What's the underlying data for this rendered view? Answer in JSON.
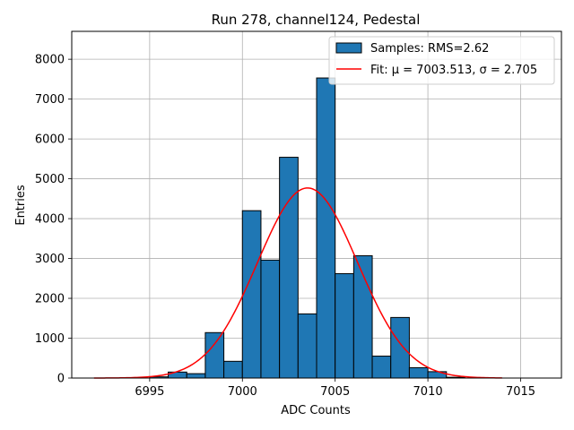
{
  "chart_data": {
    "type": "bar",
    "title": "Run 278, channel124, Pedestal",
    "xlabel": "ADC Counts",
    "ylabel": "Entries",
    "xlim": [
      6990.8,
      7017.2
    ],
    "ylim": [
      0,
      8700
    ],
    "xticks": [
      6995,
      7000,
      7005,
      7010,
      7015
    ],
    "yticks": [
      0,
      1000,
      2000,
      3000,
      4000,
      5000,
      6000,
      7000,
      8000
    ],
    "grid": true,
    "legend_position": "top-right",
    "bins": [
      {
        "left": 6995.0,
        "right": 6996.0,
        "value": 30
      },
      {
        "left": 6996.0,
        "right": 6997.0,
        "value": 150
      },
      {
        "left": 6997.0,
        "right": 6998.0,
        "value": 110
      },
      {
        "left": 6998.0,
        "right": 6999.0,
        "value": 1140
      },
      {
        "left": 6999.0,
        "right": 7000.0,
        "value": 420
      },
      {
        "left": 7000.0,
        "right": 7001.0,
        "value": 4200
      },
      {
        "left": 7001.0,
        "right": 7002.0,
        "value": 2960
      },
      {
        "left": 7002.0,
        "right": 7003.0,
        "value": 5540
      },
      {
        "left": 7003.0,
        "right": 7004.0,
        "value": 1610
      },
      {
        "left": 7004.0,
        "right": 7005.0,
        "value": 7530
      },
      {
        "left": 7005.0,
        "right": 7006.0,
        "value": 2620
      },
      {
        "left": 7006.0,
        "right": 7007.0,
        "value": 3070
      },
      {
        "left": 7007.0,
        "right": 7008.0,
        "value": 550
      },
      {
        "left": 7008.0,
        "right": 7009.0,
        "value": 1520
      },
      {
        "left": 7009.0,
        "right": 7010.0,
        "value": 260
      },
      {
        "left": 7010.0,
        "right": 7011.0,
        "value": 160
      },
      {
        "left": 7011.0,
        "right": 7012.0,
        "value": 20
      }
    ],
    "fit": {
      "mu": 7003.513,
      "sigma": 2.705,
      "amplitude": 4770,
      "x_range": [
        6992,
        7014
      ]
    },
    "series": [
      {
        "name": "Samples: RMS=2.62",
        "kind": "histogram",
        "color": "#1f77b4",
        "edgecolor": "#000000"
      },
      {
        "name": "Fit: μ = 7003.513, σ = 2.705",
        "kind": "line",
        "color": "#ff0000"
      }
    ]
  }
}
